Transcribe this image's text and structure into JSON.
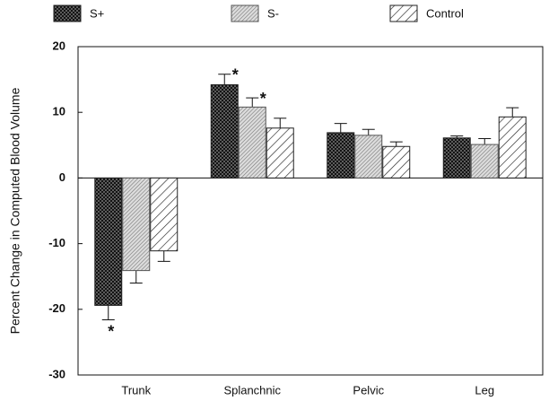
{
  "chart_data": {
    "type": "bar",
    "ylabel": "Percent Change in Computed Blood Volume",
    "categories": [
      "Trunk",
      "Splanchnic",
      "Pelvic",
      "Leg"
    ],
    "series": [
      {
        "name": "S+",
        "color": "#222222",
        "pattern": "crosshatch",
        "values": [
          -19.4,
          14.2,
          6.9,
          6.1
        ],
        "errors": [
          2.2,
          1.6,
          1.4,
          0.3
        ]
      },
      {
        "name": "S-",
        "color": "#555555",
        "pattern": "finehatch",
        "values": [
          -14.1,
          10.8,
          6.5,
          5.1
        ],
        "errors": [
          1.9,
          1.4,
          0.9,
          0.9
        ]
      },
      {
        "name": "Control",
        "color": "#222222",
        "pattern": "hatch",
        "values": [
          -11.1,
          7.6,
          4.8,
          9.3
        ],
        "errors": [
          1.6,
          1.5,
          0.7,
          1.4
        ]
      }
    ],
    "annotations": [
      {
        "text": "*",
        "category": "Trunk",
        "series": "S+"
      },
      {
        "text": "*",
        "category": "Splanchnic",
        "series": "S+"
      },
      {
        "text": "*",
        "category": "Splanchnic",
        "series": "S-"
      }
    ],
    "ylim": [
      -30,
      20
    ],
    "yticks": [
      -30,
      -20,
      -10,
      0,
      10,
      20
    ],
    "legend": "top"
  }
}
